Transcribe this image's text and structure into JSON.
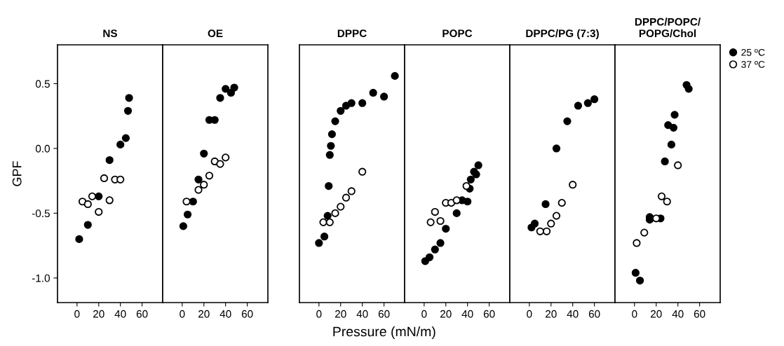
{
  "chart_data": [
    {
      "type": "scatter",
      "title": "NS",
      "ylabel": "GPF",
      "xlim": [
        -18,
        79
      ],
      "ylim": [
        -1.19,
        0.8
      ],
      "xticks": [
        0,
        20,
        40,
        60
      ],
      "yticks": [
        {
          "value": -1.0,
          "label": "-1.0"
        },
        {
          "value": -0.5,
          "label": "-0.5"
        },
        {
          "value": 0.0,
          "label": "0.0"
        },
        {
          "value": 0.5,
          "label": "0.5"
        }
      ],
      "marker": "circle",
      "grid": false,
      "legend": false,
      "series": [
        {
          "color": "#000000",
          "x": [
            2,
            10,
            20,
            30,
            40,
            45,
            47,
            48
          ],
          "values": [
            -0.7,
            -0.59,
            -0.37,
            -0.09,
            0.03,
            0.08,
            0.29,
            0.39
          ]
        },
        {
          "color": "#ffffff",
          "x": [
            5,
            10,
            14,
            20,
            25,
            30,
            35,
            40
          ],
          "values": [
            -0.41,
            -0.43,
            -0.37,
            -0.49,
            -0.23,
            -0.4,
            -0.24,
            -0.24
          ]
        }
      ]
    },
    {
      "type": "scatter",
      "title": "OE",
      "xlim": [
        -18,
        79
      ],
      "ylim": [
        -1.19,
        0.8
      ],
      "xticks": [
        0,
        20,
        40,
        60
      ],
      "tick_labels": "x",
      "marker": "circle",
      "grid": false,
      "legend": false,
      "series": [
        {
          "color": "#000000",
          "x": [
            1,
            5,
            10,
            15,
            20,
            25,
            30,
            35,
            40,
            45,
            48
          ],
          "values": [
            -0.6,
            -0.51,
            -0.41,
            -0.24,
            -0.04,
            0.22,
            0.22,
            0.39,
            0.46,
            0.43,
            0.47
          ]
        },
        {
          "color": "#ffffff",
          "x": [
            4,
            15,
            20,
            25,
            30,
            35,
            40
          ],
          "values": [
            -0.41,
            -0.32,
            -0.28,
            -0.21,
            -0.1,
            -0.12,
            -0.07
          ]
        }
      ]
    },
    {
      "type": "scatter",
      "title": "DPPC",
      "xlabel": "Pressure (mN/m)",
      "xlim": [
        -18,
        79
      ],
      "ylim": [
        -1.19,
        0.8
      ],
      "xticks": [
        0,
        20,
        40,
        60
      ],
      "tick_labels": "x",
      "marker": "circle",
      "grid": false,
      "legend": false,
      "series": [
        {
          "color": "#000000",
          "x": [
            0,
            5,
            8,
            9,
            10,
            11,
            12,
            15,
            20,
            25,
            30,
            40,
            50,
            60,
            70
          ],
          "values": [
            -0.73,
            -0.68,
            -0.52,
            -0.29,
            -0.05,
            0.02,
            0.11,
            0.21,
            0.29,
            0.33,
            0.35,
            0.35,
            0.43,
            0.4,
            0.56
          ]
        },
        {
          "color": "#ffffff",
          "x": [
            4,
            10,
            15,
            20,
            25,
            30,
            40
          ],
          "values": [
            -0.57,
            -0.57,
            -0.5,
            -0.45,
            -0.38,
            -0.33,
            -0.18
          ]
        }
      ]
    },
    {
      "type": "scatter",
      "title": "POPC",
      "xlim": [
        -18,
        79
      ],
      "ylim": [
        -1.19,
        0.8
      ],
      "xticks": [
        0,
        20,
        40,
        60
      ],
      "tick_labels": "x",
      "marker": "circle",
      "grid": false,
      "legend": false,
      "series": [
        {
          "color": "#000000",
          "x": [
            1,
            5,
            10,
            15,
            20,
            30,
            35,
            40,
            42,
            43,
            46,
            48,
            50
          ],
          "values": [
            -0.87,
            -0.84,
            -0.78,
            -0.73,
            -0.62,
            -0.5,
            -0.4,
            -0.41,
            -0.31,
            -0.24,
            -0.18,
            -0.2,
            -0.13
          ]
        },
        {
          "color": "#ffffff",
          "x": [
            6,
            10,
            15,
            20,
            25,
            30,
            39
          ],
          "values": [
            -0.57,
            -0.49,
            -0.56,
            -0.42,
            -0.42,
            -0.4,
            -0.29
          ]
        }
      ]
    },
    {
      "type": "scatter",
      "title": "DPPC/PG (7:3)",
      "xlim": [
        -18,
        79
      ],
      "ylim": [
        -1.19,
        0.8
      ],
      "xticks": [
        0,
        20,
        40,
        60
      ],
      "tick_labels": "x",
      "marker": "circle",
      "grid": false,
      "legend": false,
      "series": [
        {
          "color": "#000000",
          "x": [
            2,
            5,
            15,
            25,
            35,
            45,
            54,
            60
          ],
          "values": [
            -0.61,
            -0.58,
            -0.43,
            0.0,
            0.21,
            0.33,
            0.35,
            0.38
          ]
        },
        {
          "color": "#ffffff",
          "x": [
            10,
            16,
            20,
            25,
            30,
            40
          ],
          "values": [
            -0.64,
            -0.64,
            -0.58,
            -0.52,
            -0.42,
            -0.28
          ]
        }
      ]
    },
    {
      "type": "scatter",
      "title": "DPPC/POPC/\nPOPG/Chol",
      "xlim": [
        -18,
        79
      ],
      "ylim": [
        -1.19,
        0.8
      ],
      "xticks": [
        0,
        20,
        40,
        60
      ],
      "tick_labels": "x",
      "marker": "circle",
      "grid": false,
      "legend": "right",
      "series": [
        {
          "name": "25 ºC",
          "color": "#000000",
          "x": [
            1,
            5,
            14,
            14,
            24,
            28,
            34,
            31,
            36,
            37,
            48,
            50
          ],
          "values": [
            -0.96,
            -1.02,
            -0.53,
            -0.55,
            -0.54,
            -0.1,
            0.03,
            0.18,
            0.16,
            0.26,
            0.49,
            0.46
          ]
        },
        {
          "name": "37 ºC",
          "color": "#ffffff",
          "x": [
            2,
            9,
            20,
            25,
            30,
            40
          ],
          "values": [
            -0.73,
            -0.65,
            -0.54,
            -0.37,
            -0.41,
            -0.13
          ]
        }
      ]
    }
  ]
}
